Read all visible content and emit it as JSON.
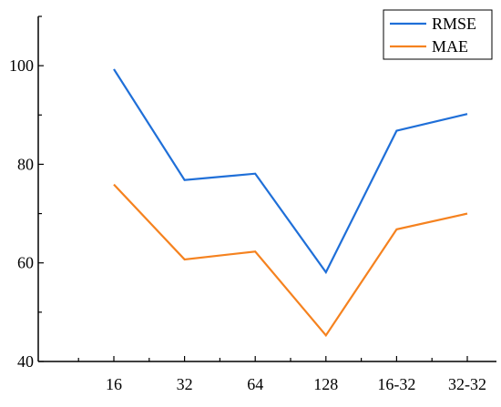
{
  "chart_data": {
    "type": "line",
    "title": "",
    "xlabel": "",
    "ylabel": "",
    "categories": [
      "16",
      "32",
      "64",
      "128",
      "16-32",
      "32-32"
    ],
    "ylim": [
      40,
      110
    ],
    "yticks": [
      40,
      60,
      80,
      100
    ],
    "grid": false,
    "legend": "top-right",
    "series": [
      {
        "name": "RMSE",
        "color": "#1f6fd8",
        "values": [
          99.3,
          76.8,
          78.1,
          58.1,
          86.8,
          90.2
        ]
      },
      {
        "name": "MAE",
        "color": "#f5821f",
        "values": [
          75.9,
          60.7,
          62.3,
          45.3,
          66.8,
          70.0
        ]
      }
    ]
  }
}
